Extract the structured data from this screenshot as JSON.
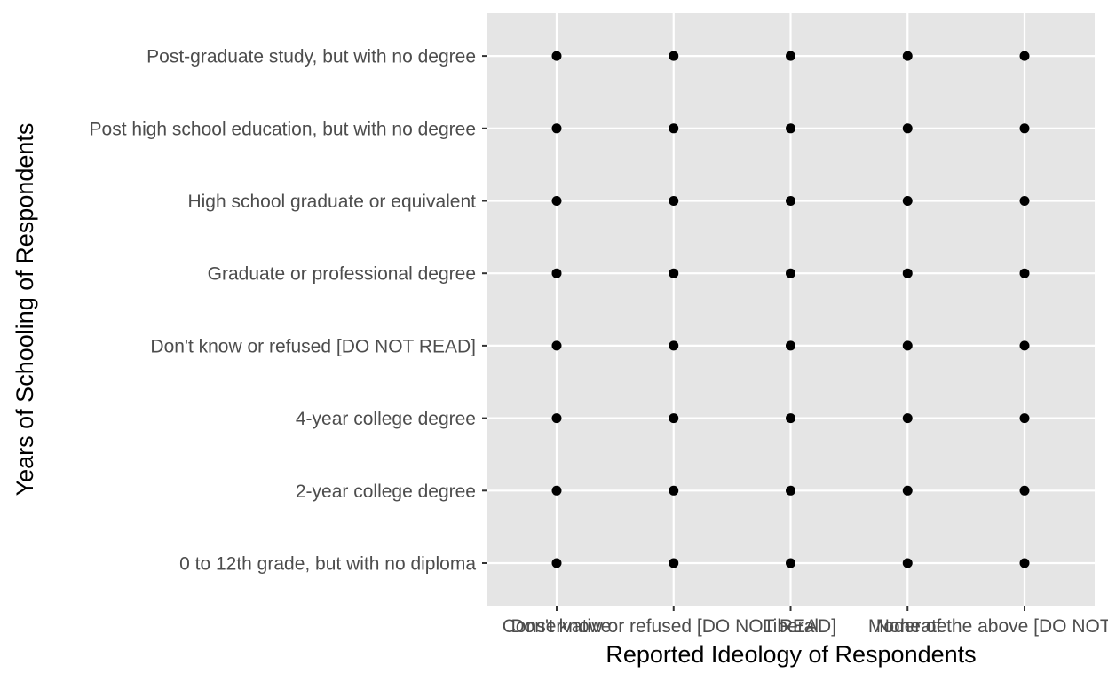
{
  "chart_data": {
    "type": "scatter",
    "title": "",
    "xlabel": "Reported Ideology of Respondents",
    "ylabel": "Years of Schooling of Respondents",
    "x_categories": [
      "Conservative",
      "Don't know or refused [DO NOT READ]",
      "Liberal",
      "Moderate",
      "None of the above [DO NOT READ]"
    ],
    "y_categories": [
      "0 to 12th grade, but with no diploma",
      "2-year college degree",
      "4-year college degree",
      "Don't know or refused [DO NOT READ]",
      "Graduate or professional degree",
      "High school graduate or equivalent",
      "Post high school education, but with no degree",
      "Post-graduate study, but with no degree"
    ],
    "points_note": "every ideology category paired with every schooling category",
    "grid": true,
    "legend": "none",
    "colors": {
      "panel_background": "#e5e5e5",
      "grid": "#ffffff",
      "point": "#000000",
      "tick_label": "#4d4d4d",
      "axis_title": "#000000"
    }
  }
}
